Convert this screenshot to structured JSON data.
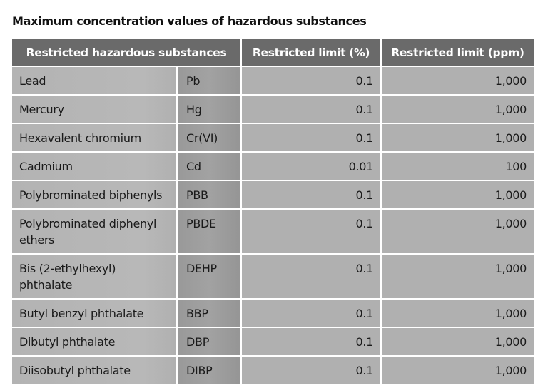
{
  "title": "Maximum concentration values of hazardous substances",
  "headers": [
    "Restricted hazardous substances",
    "Restricted limit (%)",
    "Restricted limit (ppm)"
  ],
  "rows": [
    {
      "name": "Lead",
      "symbol": "Pb",
      "pct": "0.1",
      "ppm": "1,000"
    },
    {
      "name": "Mercury",
      "symbol": "Hg",
      "pct": "0.1",
      "ppm": "1,000"
    },
    {
      "name": "Hexavalent chromium",
      "symbol": "Cr(VI)",
      "pct": "0.1",
      "ppm": "1,000"
    },
    {
      "name": "Cadmium",
      "symbol": "Cd",
      "pct": "0.01",
      "ppm": "100"
    },
    {
      "name": "Polybrominated biphenyls",
      "symbol": "PBB",
      "pct": "0.1",
      "ppm": "1,000"
    },
    {
      "name": "Polybrominated diphenyl ethers",
      "symbol": "PBDE",
      "pct": "0.1",
      "ppm": "1,000"
    },
    {
      "name": "Bis (2-ethylhexyl) phthalate",
      "symbol": "DEHP",
      "pct": "0.1",
      "ppm": "1,000"
    },
    {
      "name": "Butyl benzyl phthalate",
      "symbol": "BBP",
      "pct": "0.1",
      "ppm": "1,000"
    },
    {
      "name": "Dibutyl phthalate",
      "symbol": "DBP",
      "pct": "0.1",
      "ppm": "1,000"
    },
    {
      "name": "Diisobutyl phthalate",
      "symbol": "DIBP",
      "pct": "0.1",
      "ppm": "1,000"
    }
  ]
}
